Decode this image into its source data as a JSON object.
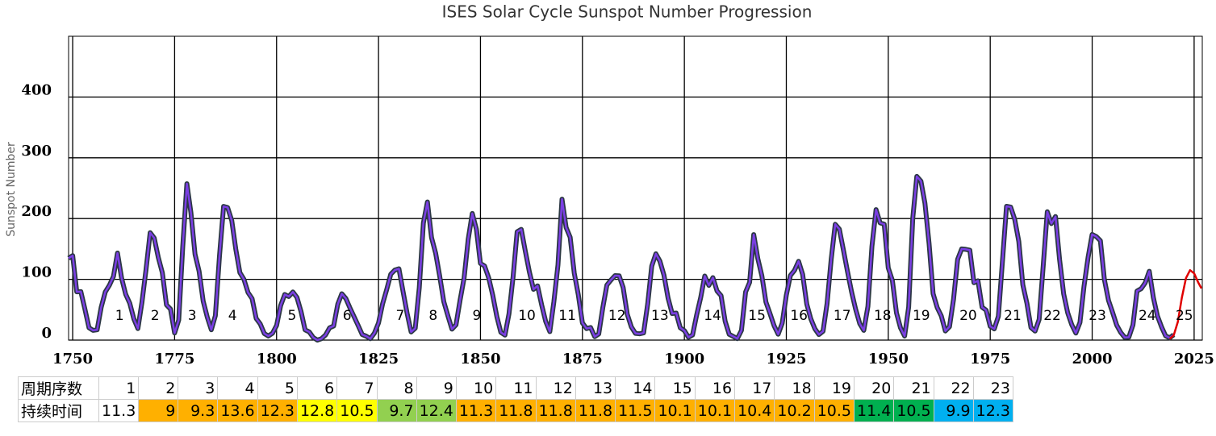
{
  "chart_data": {
    "type": "line",
    "title": "ISES Solar Cycle Sunspot Number Progression",
    "y_label": "Sunspot Number",
    "x": [
      1749,
      1750,
      1751,
      1752,
      1753,
      1754,
      1755,
      1756,
      1757,
      1758,
      1759,
      1760,
      1761,
      1762,
      1763,
      1764,
      1765,
      1766,
      1767,
      1768,
      1769,
      1770,
      1771,
      1772,
      1773,
      1774,
      1775,
      1776,
      1777,
      1778,
      1779,
      1780,
      1781,
      1782,
      1783,
      1784,
      1785,
      1786,
      1787,
      1788,
      1789,
      1790,
      1791,
      1792,
      1793,
      1794,
      1795,
      1796,
      1797,
      1798,
      1799,
      1800,
      1801,
      1802,
      1803,
      1804,
      1805,
      1806,
      1807,
      1808,
      1809,
      1810,
      1811,
      1812,
      1813,
      1814,
      1815,
      1816,
      1817,
      1818,
      1819,
      1820,
      1821,
      1822,
      1823,
      1824,
      1825,
      1826,
      1827,
      1828,
      1829,
      1830,
      1831,
      1832,
      1833,
      1834,
      1835,
      1836,
      1837,
      1838,
      1839,
      1840,
      1841,
      1842,
      1843,
      1844,
      1845,
      1846,
      1847,
      1848,
      1849,
      1850,
      1851,
      1852,
      1853,
      1854,
      1855,
      1856,
      1857,
      1858,
      1859,
      1860,
      1861,
      1862,
      1863,
      1864,
      1865,
      1866,
      1867,
      1868,
      1869,
      1870,
      1871,
      1872,
      1873,
      1874,
      1875,
      1876,
      1877,
      1878,
      1879,
      1880,
      1881,
      1882,
      1883,
      1884,
      1885,
      1886,
      1887,
      1888,
      1889,
      1890,
      1891,
      1892,
      1893,
      1894,
      1895,
      1896,
      1897,
      1898,
      1899,
      1900,
      1901,
      1902,
      1903,
      1904,
      1905,
      1906,
      1907,
      1908,
      1909,
      1910,
      1911,
      1912,
      1913,
      1914,
      1915,
      1916,
      1917,
      1918,
      1919,
      1920,
      1921,
      1922,
      1923,
      1924,
      1925,
      1926,
      1927,
      1928,
      1929,
      1930,
      1931,
      1932,
      1933,
      1934,
      1935,
      1936,
      1937,
      1938,
      1939,
      1940,
      1941,
      1942,
      1943,
      1944,
      1945,
      1946,
      1947,
      1948,
      1949,
      1950,
      1951,
      1952,
      1953,
      1954,
      1955,
      1956,
      1957,
      1958,
      1959,
      1960,
      1961,
      1962,
      1963,
      1964,
      1965,
      1966,
      1967,
      1968,
      1969,
      1970,
      1971,
      1972,
      1973,
      1974,
      1975,
      1976,
      1977,
      1978,
      1979,
      1980,
      1981,
      1982,
      1983,
      1984,
      1985,
      1986,
      1987,
      1988,
      1989,
      1990,
      1991,
      1992,
      1993,
      1994,
      1995,
      1996,
      1997,
      1998,
      1999,
      2000,
      2001,
      2002,
      2003,
      2004,
      2005,
      2006,
      2007,
      2008,
      2009,
      2010,
      2011,
      2012,
      2013,
      2014,
      2015,
      2016,
      2017,
      2018,
      2019,
      2020
    ],
    "series": [
      {
        "color": "#7b3fe4",
        "values": [
          134.7,
          139.0,
          79.5,
          79.7,
          51.2,
          20.3,
          16.0,
          17.0,
          54.0,
          79.3,
          90.0,
          104.8,
          143.2,
          102.0,
          75.2,
          60.7,
          34.8,
          19.0,
          63.0,
          116.3,
          176.8,
          168.0,
          136.0,
          110.8,
          58.0,
          51.0,
          11.7,
          33.0,
          154.2,
          257.3,
          209.8,
          141.3,
          113.5,
          64.2,
          38.0,
          17.0,
          40.2,
          138.2,
          220.0,
          218.2,
          196.8,
          149.8,
          111.0,
          100.0,
          78.2,
          68.3,
          35.5,
          26.7,
          10.7,
          6.8,
          11.3,
          24.2,
          56.7,
          75.0,
          71.8,
          79.2,
          70.3,
          46.8,
          16.8,
          13.5,
          4.2,
          0.0,
          2.3,
          8.3,
          20.3,
          23.2,
          59.0,
          76.3,
          68.3,
          52.9,
          38.5,
          24.2,
          9.2,
          6.3,
          2.2,
          11.4,
          28.2,
          59.9,
          83.0,
          108.5,
          115.2,
          117.4,
          80.8,
          44.3,
          13.4,
          19.5,
          85.8,
          192.7,
          227.3,
          168.7,
          143.0,
          105.5,
          63.3,
          40.3,
          18.1,
          25.1,
          65.8,
          102.7,
          166.3,
          208.3,
          182.5,
          126.3,
          122.0,
          102.7,
          74.1,
          39.0,
          12.7,
          8.2,
          43.4,
          104.4,
          178.3,
          182.2,
          146.6,
          112.1,
          83.5,
          89.2,
          57.8,
          30.7,
          13.9,
          62.8,
          123.6,
          232.0,
          185.3,
          169.2,
          110.1,
          74.5,
          28.3,
          18.9,
          20.7,
          5.7,
          10.0,
          53.7,
          90.5,
          99.0,
          106.1,
          105.8,
          86.3,
          42.4,
          21.8,
          11.2,
          10.4,
          11.8,
          59.5,
          121.7,
          142.0,
          130.0,
          106.6,
          69.4,
          43.8,
          44.4,
          20.2,
          15.7,
          4.6,
          8.5,
          40.8,
          70.1,
          105.5,
          90.1,
          102.8,
          80.9,
          73.2,
          30.9,
          9.5,
          6.0,
          2.4,
          16.1,
          79.0,
          95.0,
          173.6,
          134.6,
          105.7,
          62.7,
          43.5,
          23.7,
          9.7,
          27.9,
          74.0,
          106.5,
          114.7,
          129.7,
          108.2,
          59.4,
          35.1,
          18.6,
          9.2,
          14.6,
          60.2,
          132.8,
          190.6,
          182.6,
          148.0,
          113.0,
          79.2,
          50.8,
          27.1,
          16.1,
          55.3,
          154.3,
          214.7,
          193.0,
          190.7,
          118.9,
          98.3,
          45.0,
          20.1,
          6.6,
          54.2,
          200.7,
          269.3,
          261.7,
          225.1,
          159.0,
          76.4,
          53.4,
          39.9,
          15.0,
          22.0,
          66.8,
          132.9,
          150.0,
          149.4,
          148.0,
          94.4,
          97.6,
          54.1,
          49.2,
          22.5,
          18.4,
          39.3,
          131.0,
          220.1,
          218.9,
          198.9,
          162.4,
          91.0,
          60.5,
          20.6,
          14.8,
          33.9,
          123.0,
          211.1,
          191.8,
          203.3,
          133.0,
          76.1,
          44.9,
          25.1,
          11.6,
          28.9,
          88.3,
          136.3,
          173.9,
          170.4,
          163.6,
          99.3,
          65.3,
          45.8,
          24.7,
          12.6,
          4.2,
          4.8,
          24.9,
          80.8,
          84.5,
          94.0,
          113.3,
          69.8,
          39.8,
          21.7,
          7.0,
          3.6,
          8.8
        ]
      },
      {
        "color": "#e00000",
        "x": [
          2019,
          2020,
          2021,
          2022,
          2023,
          2024,
          2025,
          2026,
          2026.8
        ],
        "values": [
          2,
          8,
          30,
          70,
          102,
          115,
          110,
          95,
          85
        ]
      }
    ],
    "xlim": [
      1749,
      2027
    ],
    "xticks": [
      1750,
      1775,
      1800,
      1825,
      1850,
      1875,
      1900,
      1925,
      1950,
      1975,
      2000,
      2025
    ],
    "ylim": [
      0,
      500
    ],
    "yticks": [
      0,
      100,
      200,
      300,
      400
    ],
    "grid": true,
    "cycle_labels": {
      "x": [
        1761.5,
        1770.2,
        1779.3,
        1789.2,
        1803.8,
        1817.3,
        1830.3,
        1838.4,
        1849.1,
        1861.4,
        1871.3,
        1883.5,
        1894.0,
        1906.9,
        1917.8,
        1928.1,
        1938.7,
        1948.6,
        1958.1,
        1969.6,
        1980.5,
        1990.2,
        2001.3,
        2013.5,
        2022.6
      ],
      "labels": [
        "1",
        "2",
        "3",
        "4",
        "5",
        "6",
        "7",
        "8",
        "9",
        "10",
        "11",
        "12",
        "13",
        "14",
        "15",
        "16",
        "17",
        "18",
        "19",
        "20",
        "21",
        "22",
        "23",
        "24",
        "25"
      ]
    }
  },
  "table": {
    "row_headers": [
      "周期序数",
      "持续时间"
    ],
    "cycles": [
      1,
      2,
      3,
      4,
      5,
      6,
      7,
      8,
      9,
      10,
      11,
      12,
      13,
      14,
      15,
      16,
      17,
      18,
      19,
      20,
      21,
      22,
      23
    ],
    "durations": [
      11.3,
      9,
      9.3,
      13.6,
      12.3,
      12.8,
      10.5,
      9.7,
      12.4,
      11.3,
      11.8,
      11.8,
      11.8,
      11.5,
      10.1,
      10.1,
      10.4,
      10.2,
      10.5,
      11.4,
      10.5,
      9.9,
      12.3
    ],
    "colors": [
      "#ffffff",
      "#ffb000",
      "#ffb000",
      "#ffb000",
      "#ffb000",
      "#ffff00",
      "#ffff00",
      "#92d050",
      "#92d050",
      "#ffb000",
      "#ffb000",
      "#ffb000",
      "#ffb000",
      "#ffb000",
      "#ffb000",
      "#ffb000",
      "#ffb000",
      "#ffb000",
      "#ffb000",
      "#00b050",
      "#00b050",
      "#00b0f0",
      "#00b0f0"
    ]
  }
}
